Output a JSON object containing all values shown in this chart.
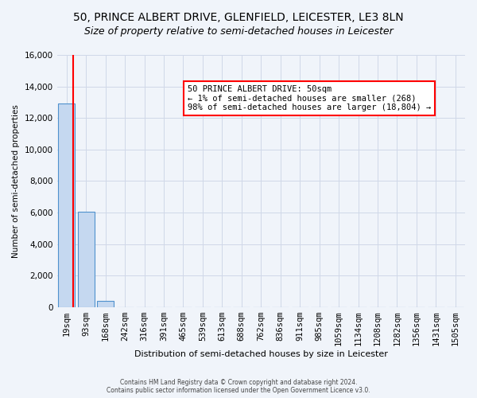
{
  "title": "50, PRINCE ALBERT DRIVE, GLENFIELD, LEICESTER, LE3 8LN",
  "subtitle": "Size of property relative to semi-detached houses in Leicester",
  "xlabel": "Distribution of semi-detached houses by size in Leicester",
  "ylabel": "Number of semi-detached properties",
  "bar_labels": [
    "19sqm",
    "93sqm",
    "168sqm",
    "242sqm",
    "316sqm",
    "391sqm",
    "465sqm",
    "539sqm",
    "613sqm",
    "688sqm",
    "762sqm",
    "836sqm",
    "911sqm",
    "985sqm",
    "1059sqm",
    "1134sqm",
    "1208sqm",
    "1282sqm",
    "1356sqm",
    "1431sqm",
    "1505sqm"
  ],
  "bar_values": [
    12900,
    6050,
    380,
    0,
    0,
    0,
    0,
    0,
    0,
    0,
    0,
    0,
    0,
    0,
    0,
    0,
    0,
    0,
    0,
    0,
    0
  ],
  "bar_color": "#c5d8f0",
  "bar_edge_color": "#4f91cd",
  "ylim": [
    0,
    16000
  ],
  "yticks": [
    0,
    2000,
    4000,
    6000,
    8000,
    10000,
    12000,
    14000,
    16000
  ],
  "property_line_x": 0.3,
  "annotation_title": "50 PRINCE ALBERT DRIVE: 50sqm",
  "annotation_line1": "← 1% of semi-detached houses are smaller (268)",
  "annotation_line2": "98% of semi-detached houses are larger (18,804) →",
  "annotation_box_color": "white",
  "annotation_box_edge_color": "red",
  "property_line_color": "red",
  "footer_line1": "Contains HM Land Registry data © Crown copyright and database right 2024.",
  "footer_line2": "Contains public sector information licensed under the Open Government Licence v3.0.",
  "background_color": "#f0f4fa",
  "grid_color": "#d0d8e8",
  "title_fontsize": 10,
  "subtitle_fontsize": 9
}
